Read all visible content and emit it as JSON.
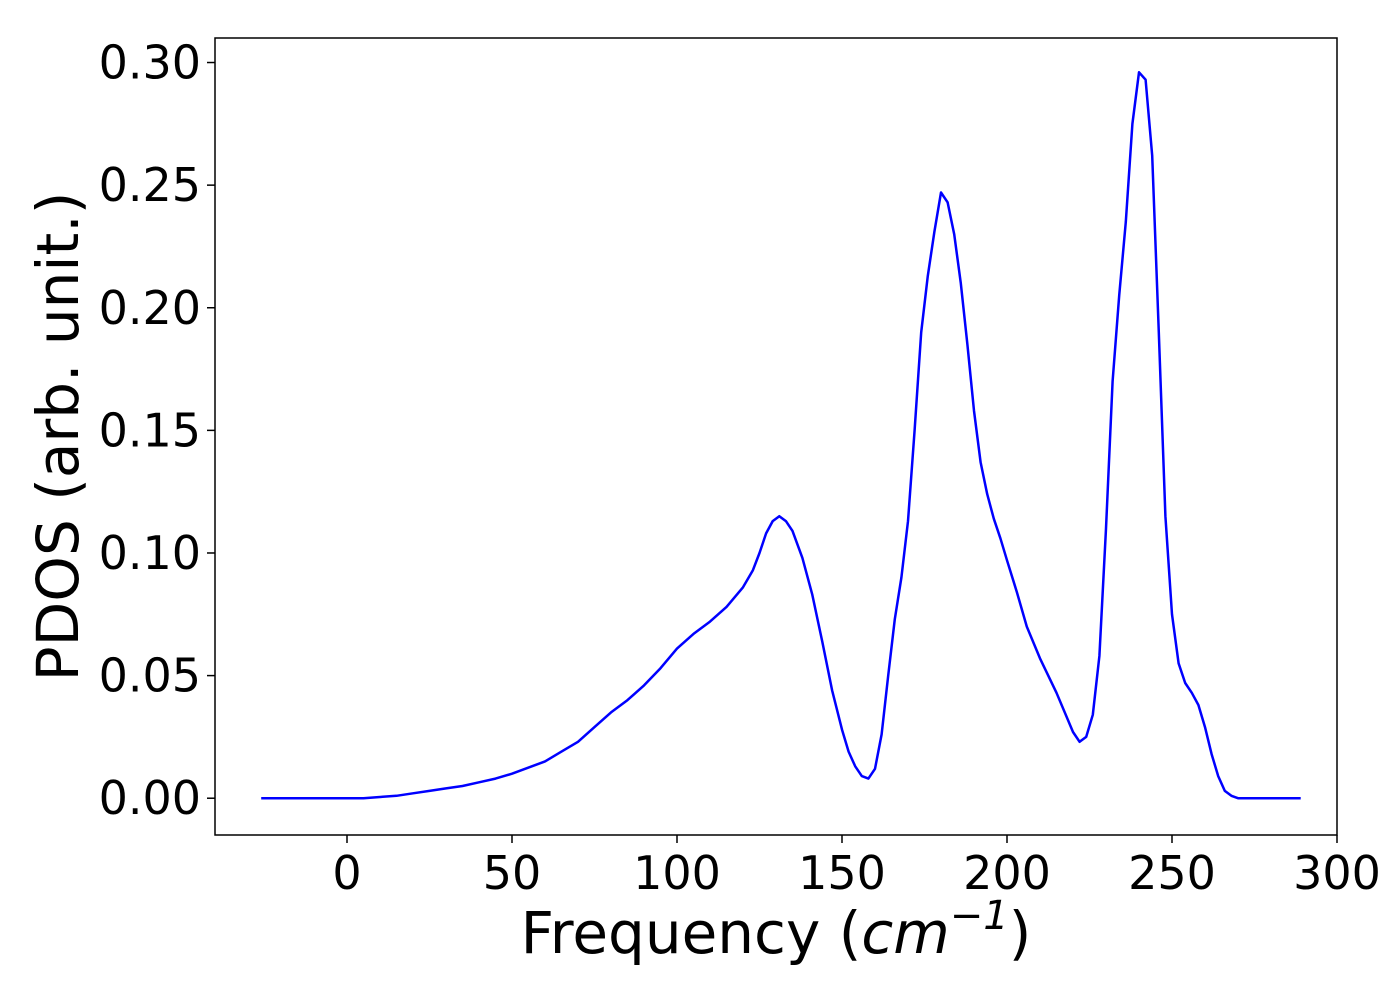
{
  "chart_data": {
    "type": "line",
    "xlabel_main": "Frequency (",
    "xlabel_unit": "cm",
    "xlabel_exp": "−1",
    "xlabel_close": ")",
    "ylabel": "PDOS (arb. unit.)",
    "xlim": [
      -40,
      300
    ],
    "ylim": [
      -0.015,
      0.31
    ],
    "xticks": [
      0,
      50,
      100,
      150,
      200,
      250,
      300
    ],
    "xtick_labels": [
      "0",
      "50",
      "100",
      "150",
      "200",
      "250",
      "300"
    ],
    "yticks": [
      0,
      0.05,
      0.1,
      0.15,
      0.2,
      0.25,
      0.3
    ],
    "ytick_labels": [
      "0.00",
      "0.05",
      "0.10",
      "0.15",
      "0.20",
      "0.25",
      "0.30"
    ],
    "grid": false,
    "series": [
      {
        "color": "#0000ff",
        "x": [
          -26,
          -10,
          0,
          5,
          10,
          15,
          20,
          25,
          30,
          35,
          40,
          45,
          50,
          55,
          60,
          65,
          70,
          75,
          80,
          85,
          90,
          95,
          100,
          105,
          110,
          115,
          120,
          123,
          125,
          127,
          129,
          131,
          133,
          135,
          138,
          141,
          144,
          147,
          150,
          152,
          154,
          156,
          158,
          160,
          162,
          164,
          166,
          168,
          170,
          172,
          174,
          176,
          178,
          180,
          182,
          184,
          186,
          188,
          190,
          192,
          194,
          196,
          198,
          200,
          203,
          206,
          210,
          215,
          220,
          222,
          224,
          226,
          228,
          230,
          232,
          234,
          236,
          238,
          240,
          242,
          244,
          246,
          248,
          250,
          252,
          254,
          256,
          258,
          260,
          262,
          264,
          266,
          268,
          270,
          280,
          289
        ],
        "y": [
          0,
          0,
          0,
          0,
          0.0005,
          0.001,
          0.002,
          0.003,
          0.004,
          0.005,
          0.0065,
          0.008,
          0.01,
          0.0125,
          0.015,
          0.019,
          0.023,
          0.029,
          0.035,
          0.04,
          0.046,
          0.053,
          0.061,
          0.067,
          0.072,
          0.078,
          0.086,
          0.093,
          0.1,
          0.108,
          0.113,
          0.115,
          0.113,
          0.109,
          0.098,
          0.083,
          0.064,
          0.044,
          0.028,
          0.019,
          0.013,
          0.009,
          0.008,
          0.012,
          0.026,
          0.05,
          0.073,
          0.09,
          0.113,
          0.15,
          0.19,
          0.213,
          0.231,
          0.247,
          0.243,
          0.23,
          0.21,
          0.185,
          0.158,
          0.137,
          0.124,
          0.114,
          0.106,
          0.097,
          0.084,
          0.07,
          0.057,
          0.043,
          0.027,
          0.023,
          0.025,
          0.034,
          0.058,
          0.11,
          0.17,
          0.205,
          0.235,
          0.275,
          0.296,
          0.293,
          0.262,
          0.19,
          0.115,
          0.075,
          0.055,
          0.047,
          0.043,
          0.038,
          0.029,
          0.018,
          0.009,
          0.003,
          0.001,
          0,
          0,
          0
        ]
      }
    ]
  }
}
